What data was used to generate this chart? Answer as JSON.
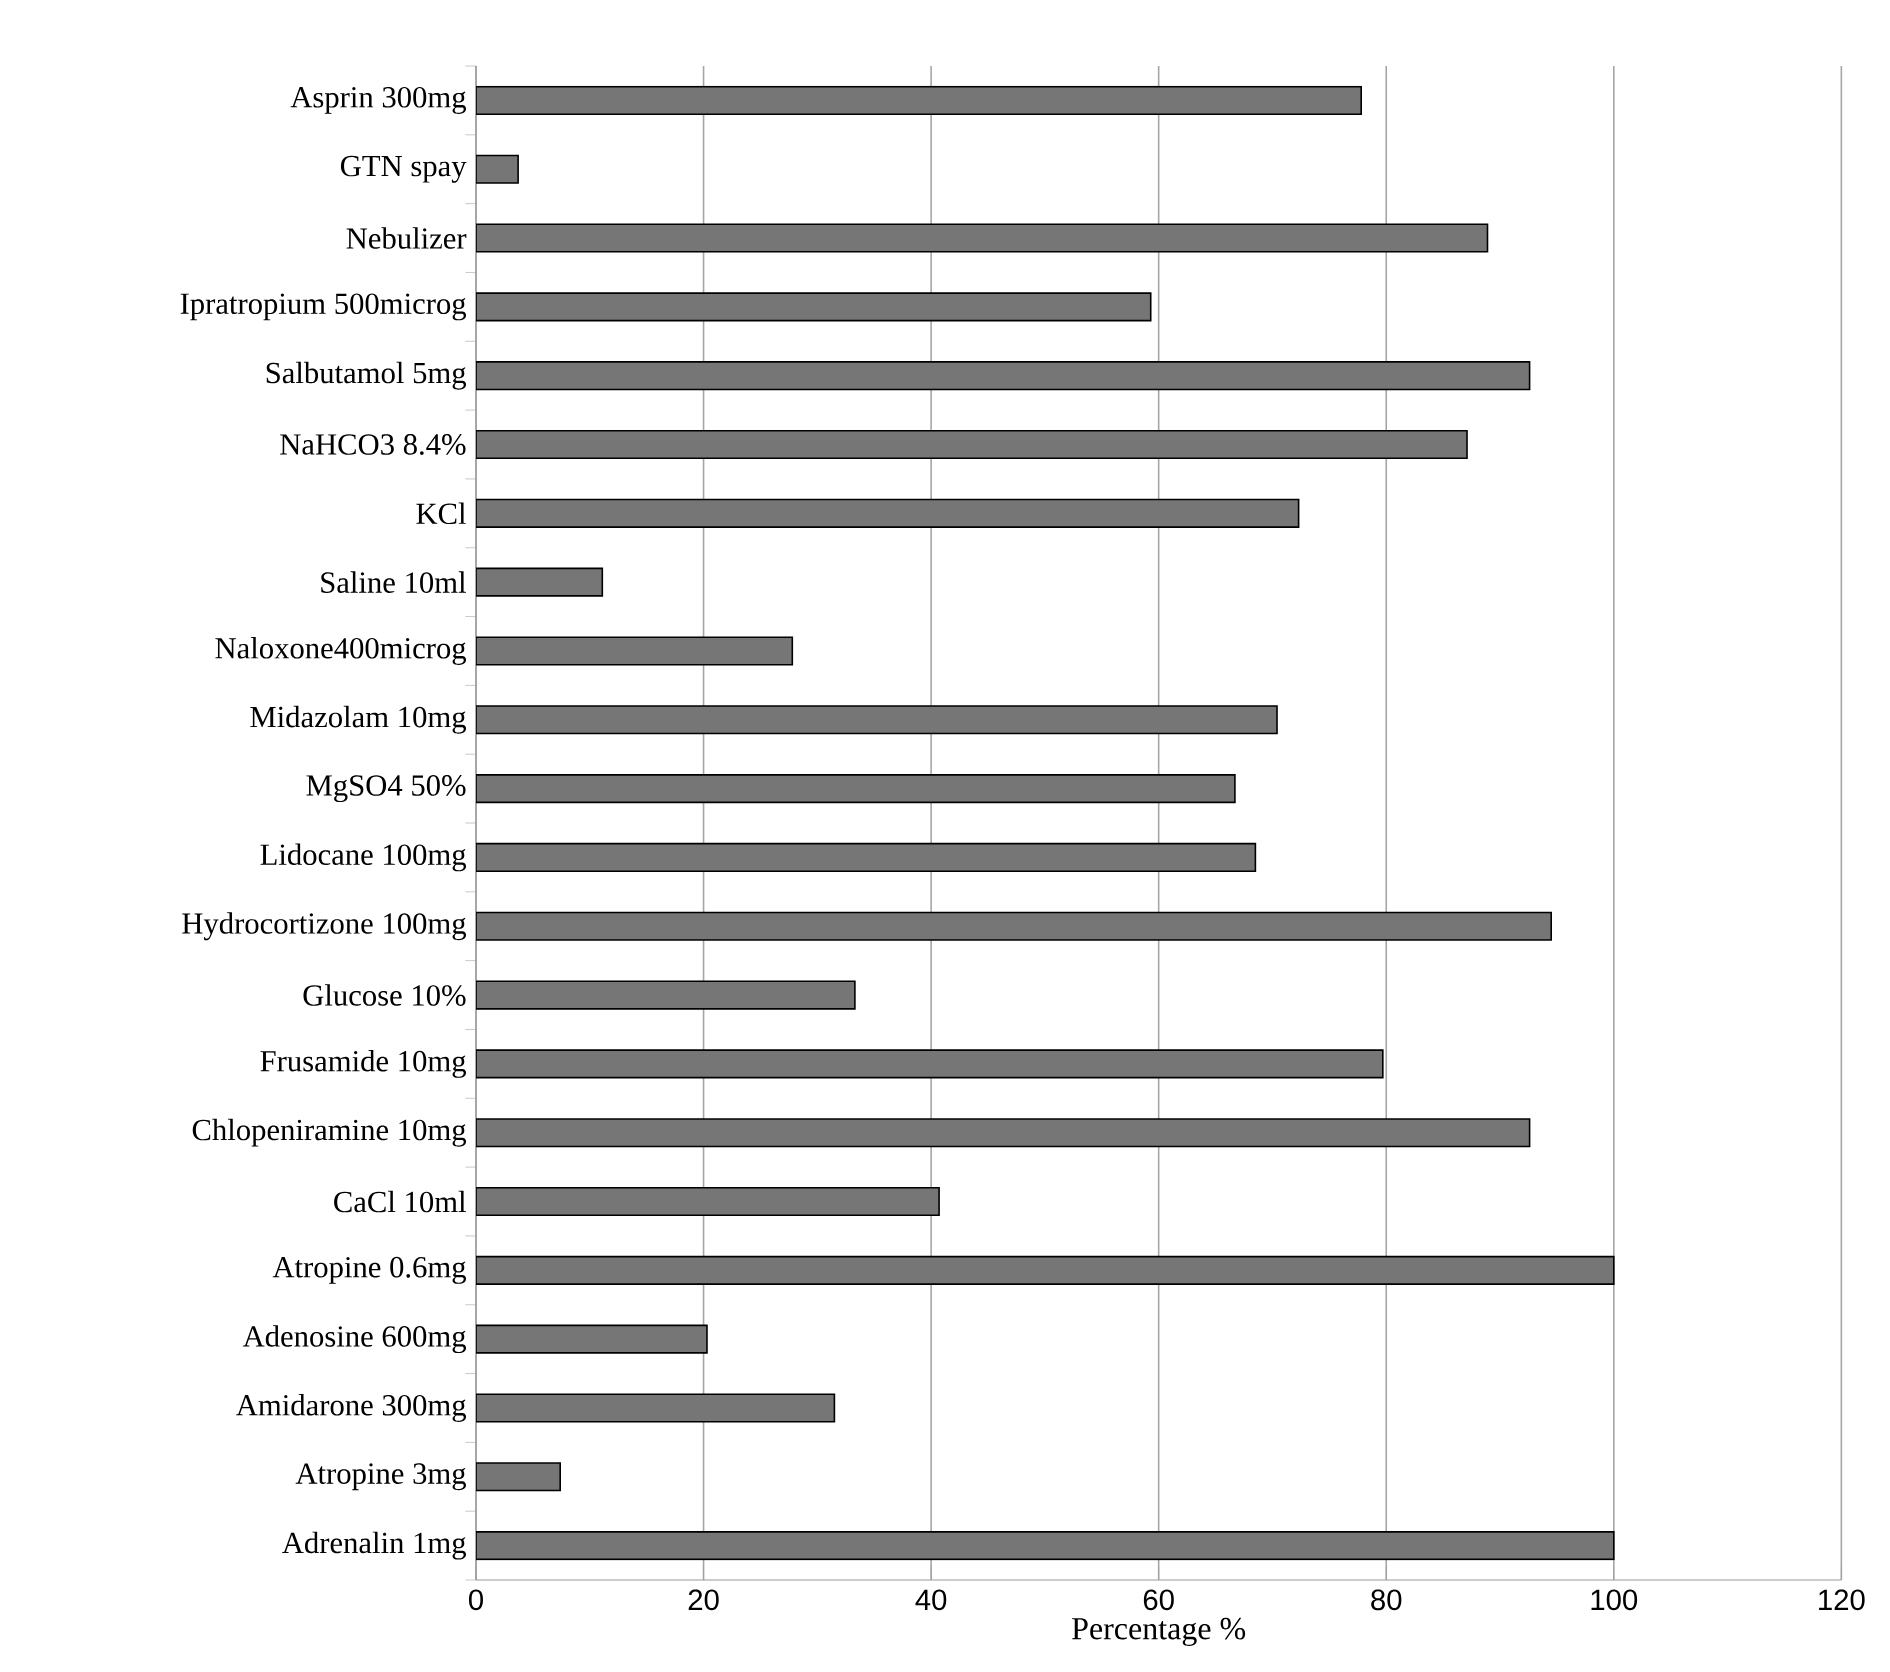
{
  "chart_data": {
    "type": "bar",
    "orientation": "horizontal",
    "xlabel": "Percentage %",
    "categories": [
      "Asprin 300mg",
      "GTN spay",
      "Nebulizer",
      "Ipratropium 500microg",
      "Salbutamol 5mg",
      "NaHCO3 8.4%",
      "KCl",
      "Saline 10ml",
      "Naloxone400microg",
      "Midazolam 10mg",
      "MgSO4 50%",
      "Lidocane 100mg",
      "Hydrocortizone 100mg",
      "Glucose 10%",
      "Frusamide 10mg",
      "Chlopeniramine 10mg",
      "CaCl 10ml",
      "Atropine 0.6mg",
      "Adenosine 600mg",
      "Amidarone 300mg",
      "Atropine 3mg",
      "Adrenalin 1mg"
    ],
    "values": [
      77.8,
      3.7,
      88.9,
      59.3,
      92.6,
      87.1,
      72.3,
      11.1,
      27.8,
      70.4,
      66.7,
      68.5,
      94.5,
      33.3,
      79.7,
      92.6,
      40.7,
      100,
      20.3,
      31.5,
      7.4,
      100
    ],
    "color": "#767676",
    "xlim": [
      0,
      120
    ],
    "xticks": [
      0,
      20,
      40,
      60,
      80,
      100,
      120
    ],
    "grid": "x"
  }
}
